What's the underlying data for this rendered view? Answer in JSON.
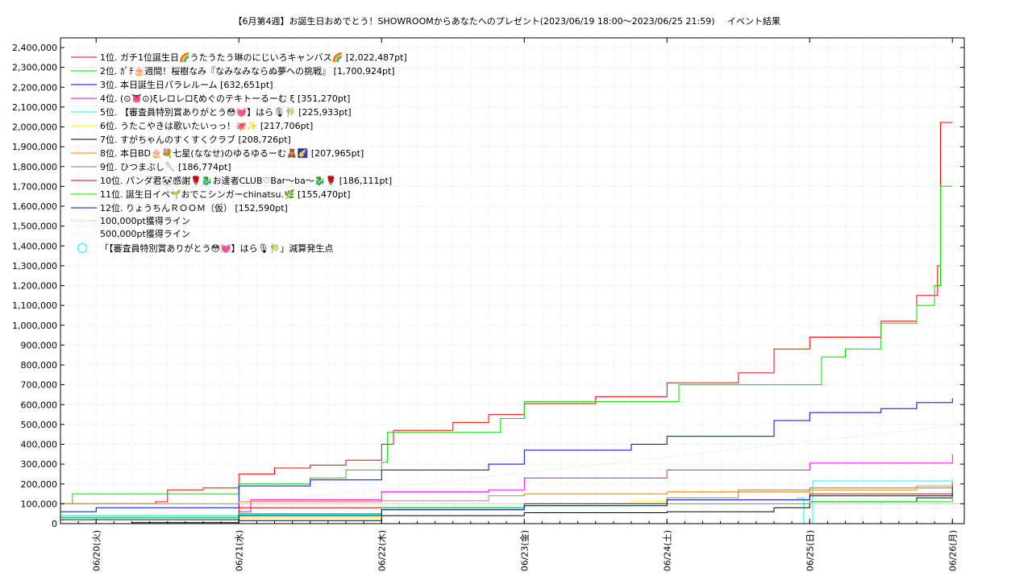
{
  "chart_data": {
    "type": "line",
    "title": "【6月第4週】お誕生日おめでとう！SHOWROOMからあなたへのプレゼント(2023/06/19 18:00～2023/06/25 21:59)",
    "subtitle": "イベント結果",
    "xlabel": "",
    "ylabel": "",
    "ylim": [
      0,
      2400000
    ],
    "y_ticks": [
      "0",
      "100,000",
      "200,000",
      "300,000",
      "400,000",
      "500,000",
      "600,000",
      "700,000",
      "800,000",
      "900,000",
      "1,000,000",
      "1,100,000",
      "1,200,000",
      "1,300,000",
      "1,400,000",
      "1,500,000",
      "1,600,000",
      "1,700,000",
      "1,800,000",
      "1,900,000",
      "2,000,000",
      "2,100,000",
      "2,200,000",
      "2,300,000",
      "2,400,000"
    ],
    "x_range": [
      "2023-06-19T18:00",
      "2023-06-26T02:00"
    ],
    "x_ticks": [
      {
        "t": "2023-06-20",
        "label": "06/20(火)"
      },
      {
        "t": "2023-06-21",
        "label": "06/21(水)"
      },
      {
        "t": "2023-06-22",
        "label": "06/22(木)"
      },
      {
        "t": "2023-06-23",
        "label": "06/23(金)"
      },
      {
        "t": "2023-06-24",
        "label": "06/24(土)"
      },
      {
        "t": "2023-06-25",
        "label": "06/25(日)"
      },
      {
        "t": "2023-06-26",
        "label": "06/26(月)"
      }
    ],
    "grid": true,
    "legend_position": "top-left",
    "series": [
      {
        "name": "1位. ガチ1位誕生日🌈うたうたう琳のにじいろキャンバス🌈 [2,022,487pt]",
        "color": "#ff0000",
        "points": [
          [
            "2023-06-19T18:00",
            100000
          ],
          [
            "2023-06-20T10:00",
            110000
          ],
          [
            "2023-06-20T12:00",
            170000
          ],
          [
            "2023-06-20T18:00",
            180000
          ],
          [
            "2023-06-21T00:00",
            250000
          ],
          [
            "2023-06-21T06:00",
            280000
          ],
          [
            "2023-06-21T12:00",
            295000
          ],
          [
            "2023-06-21T18:00",
            320000
          ],
          [
            "2023-06-22T00:00",
            400000
          ],
          [
            "2023-06-22T02:00",
            470000
          ],
          [
            "2023-06-22T12:00",
            510000
          ],
          [
            "2023-06-22T18:00",
            550000
          ],
          [
            "2023-06-23T00:00",
            605000
          ],
          [
            "2023-06-23T12:00",
            640000
          ],
          [
            "2023-06-24T00:00",
            710000
          ],
          [
            "2023-06-24T12:00",
            760000
          ],
          [
            "2023-06-24T18:00",
            880000
          ],
          [
            "2023-06-25T00:00",
            940000
          ],
          [
            "2023-06-25T12:00",
            1020000
          ],
          [
            "2023-06-25T18:00",
            1150000
          ],
          [
            "2023-06-25T21:30",
            1300000
          ],
          [
            "2023-06-25T22:00",
            2022487
          ],
          [
            "2023-06-26T00:00",
            2022487
          ]
        ]
      },
      {
        "name": "2位. ｶﾞﾁ🎂週間！桜樹なみ『なみなみならぬ夢への挑戦』 [1,700,924pt]",
        "color": "#00dd00",
        "points": [
          [
            "2023-06-19T18:00",
            100000
          ],
          [
            "2023-06-19T20:00",
            150000
          ],
          [
            "2023-06-21T00:00",
            200000
          ],
          [
            "2023-06-21T12:00",
            230000
          ],
          [
            "2023-06-21T18:00",
            270000
          ],
          [
            "2023-06-22T00:00",
            310000
          ],
          [
            "2023-06-22T01:00",
            460000
          ],
          [
            "2023-06-22T18:00",
            460000
          ],
          [
            "2023-06-22T20:00",
            530000
          ],
          [
            "2023-06-23T00:00",
            615000
          ],
          [
            "2023-06-24T00:00",
            615000
          ],
          [
            "2023-06-24T02:00",
            700000
          ],
          [
            "2023-06-25T00:00",
            700000
          ],
          [
            "2023-06-25T02:00",
            840000
          ],
          [
            "2023-06-25T06:00",
            880000
          ],
          [
            "2023-06-25T12:00",
            1010000
          ],
          [
            "2023-06-25T18:00",
            1100000
          ],
          [
            "2023-06-25T21:00",
            1200000
          ],
          [
            "2023-06-25T22:00",
            1700924
          ],
          [
            "2023-06-26T00:00",
            1700924
          ]
        ]
      },
      {
        "name": "3位. 本日誕生日パラレルーム [632,651pt]",
        "color": "#0000ff",
        "points": [
          [
            "2023-06-19T18:00",
            60000
          ],
          [
            "2023-06-20T00:00",
            80000
          ],
          [
            "2023-06-21T00:00",
            190000
          ],
          [
            "2023-06-21T12:00",
            220000
          ],
          [
            "2023-06-22T00:00",
            270000
          ],
          [
            "2023-06-22T18:00",
            300000
          ],
          [
            "2023-06-23T00:00",
            370000
          ],
          [
            "2023-06-23T18:00",
            400000
          ],
          [
            "2023-06-24T00:00",
            440000
          ],
          [
            "2023-06-24T18:00",
            520000
          ],
          [
            "2023-06-25T00:00",
            560000
          ],
          [
            "2023-06-25T12:00",
            580000
          ],
          [
            "2023-06-25T18:00",
            610000
          ],
          [
            "2023-06-26T00:00",
            632651
          ]
        ]
      },
      {
        "name": "4位. (⊙👅⊙)ξレロレロξめぐのテキトーるーむ ξ [351,270pt]",
        "color": "#ff00ff",
        "points": [
          [
            "2023-06-19T18:00",
            40000
          ],
          [
            "2023-06-21T00:00",
            60000
          ],
          [
            "2023-06-21T02:00",
            120000
          ],
          [
            "2023-06-21T18:00",
            120000
          ],
          [
            "2023-06-22T00:00",
            160000
          ],
          [
            "2023-06-22T18:00",
            170000
          ],
          [
            "2023-06-23T00:00",
            230000
          ],
          [
            "2023-06-23T22:00",
            230000
          ],
          [
            "2023-06-24T00:00",
            270000
          ],
          [
            "2023-06-24T22:00",
            270000
          ],
          [
            "2023-06-25T00:00",
            305000
          ],
          [
            "2023-06-25T18:00",
            305000
          ],
          [
            "2023-06-26T00:00",
            351270
          ]
        ]
      },
      {
        "name": "5位. 【審査員特別賞ありがとう😳💓】はら🎙🎋 [225,933pt]",
        "color": "#00ffff",
        "points": [
          [
            "2023-06-19T18:00",
            40000
          ],
          [
            "2023-06-21T00:00",
            45000
          ],
          [
            "2023-06-22T00:00",
            80000
          ],
          [
            "2023-06-23T00:00",
            100000
          ],
          [
            "2023-06-24T00:00",
            120000
          ],
          [
            "2023-06-24T22:00",
            130000
          ],
          [
            "2023-06-24T23:00",
            -100000
          ],
          [
            "2023-06-25T00:00",
            -100000
          ],
          [
            "2023-06-25T00:30",
            215000
          ],
          [
            "2023-06-26T00:00",
            225933
          ]
        ]
      },
      {
        "name": "6位. うたこやきは歌いたいっっ！🐙✨ [217,706pt]",
        "color": "#ffff00",
        "points": [
          [
            "2023-06-19T18:00",
            20000
          ],
          [
            "2023-06-21T00:00",
            30000
          ],
          [
            "2023-06-22T00:00",
            70000
          ],
          [
            "2023-06-23T00:00",
            90000
          ],
          [
            "2023-06-23T18:00",
            110000
          ],
          [
            "2023-06-24T00:00",
            160000
          ],
          [
            "2023-06-25T00:00",
            180000
          ],
          [
            "2023-06-26T00:00",
            217706
          ]
        ]
      },
      {
        "name": "7位. すがちゃんのすくすくクラブ [208,726pt]",
        "color": "#000000",
        "points": [
          [
            "2023-06-20T06:00",
            5000
          ],
          [
            "2023-06-21T00:00",
            15000
          ],
          [
            "2023-06-22T00:00",
            40000
          ],
          [
            "2023-06-23T00:00",
            55000
          ],
          [
            "2023-06-24T00:00",
            60000
          ],
          [
            "2023-06-24T18:00",
            80000
          ],
          [
            "2023-06-25T00:00",
            110000
          ],
          [
            "2023-06-25T18:00",
            130000
          ],
          [
            "2023-06-26T00:00",
            208726
          ]
        ]
      },
      {
        "name": "8位. 本日BD🎂💐七星(ななせ)のゆるゆるーむ🧸🌠 [207,965pt]",
        "color": "#ff8000",
        "points": [
          [
            "2023-06-19T18:00",
            100000
          ],
          [
            "2023-06-21T00:00",
            110000
          ],
          [
            "2023-06-22T00:00",
            115000
          ],
          [
            "2023-06-22T18:00",
            140000
          ],
          [
            "2023-06-23T00:00",
            150000
          ],
          [
            "2023-06-24T00:00",
            160000
          ],
          [
            "2023-06-25T00:00",
            170000
          ],
          [
            "2023-06-25T18:00",
            190000
          ],
          [
            "2023-06-26T00:00",
            207965
          ]
        ]
      },
      {
        "name": "9位. ひつまぶし🥄 [186,774pt]",
        "color": "#808080",
        "points": [
          [
            "2023-06-19T18:00",
            30000
          ],
          [
            "2023-06-21T00:00",
            50000
          ],
          [
            "2023-06-22T00:00",
            70000
          ],
          [
            "2023-06-23T00:00",
            100000
          ],
          [
            "2023-06-24T00:00",
            130000
          ],
          [
            "2023-06-24T12:00",
            170000
          ],
          [
            "2023-06-25T00:00",
            180000
          ],
          [
            "2023-06-26T00:00",
            186774
          ]
        ]
      },
      {
        "name": "10位. パンダ君🐼感謝🌹🐉お達者CLUB♡Bar～ba～🐉🌹 [186,111pt]",
        "color": "#dd0000",
        "points": [
          [
            "2023-06-20T18:00",
            0
          ],
          [
            "2023-06-21T00:00",
            80000
          ],
          [
            "2023-06-22T00:00",
            80000
          ],
          [
            "2023-06-23T00:00",
            100000
          ],
          [
            "2023-06-24T00:00",
            120000
          ],
          [
            "2023-06-25T00:00",
            150000
          ],
          [
            "2023-06-26T00:00",
            186111
          ]
        ]
      },
      {
        "name": "11位. 誕生日イベ🌱おでこシンガーchinatsu.🌿 [155,470pt]",
        "color": "#00ee00",
        "points": [
          [
            "2023-06-19T18:00",
            30000
          ],
          [
            "2023-06-21T00:00",
            50000
          ],
          [
            "2023-06-22T00:00",
            80000
          ],
          [
            "2023-06-23T00:00",
            90000
          ],
          [
            "2023-06-24T00:00",
            100000
          ],
          [
            "2023-06-25T00:00",
            110000
          ],
          [
            "2023-06-26T00:00",
            155470
          ]
        ]
      },
      {
        "name": "12位. りょうちんＲＯＯＭ（仮） [152,590pt]",
        "color": "#0000dd",
        "points": [
          [
            "2023-06-19T18:00",
            20000
          ],
          [
            "2023-06-21T00:00",
            40000
          ],
          [
            "2023-06-22T00:00",
            70000
          ],
          [
            "2023-06-23T00:00",
            90000
          ],
          [
            "2023-06-24T00:00",
            120000
          ],
          [
            "2023-06-25T00:00",
            140000
          ],
          [
            "2023-06-26T00:00",
            152590
          ]
        ]
      }
    ],
    "reference_lines": [
      {
        "name": "100,000pt獲得ライン",
        "color": "#cc8888",
        "value": 100000
      },
      {
        "name": "500,000pt獲得ライン",
        "color": "#ccdddd",
        "value_start": 0,
        "value_end": 500000
      }
    ],
    "marker_series": {
      "name": "「【審査員特別賞ありがとう😳💓】はら🎙🎋」減算発生点",
      "color": "#00ffff",
      "marker": "circle"
    }
  }
}
